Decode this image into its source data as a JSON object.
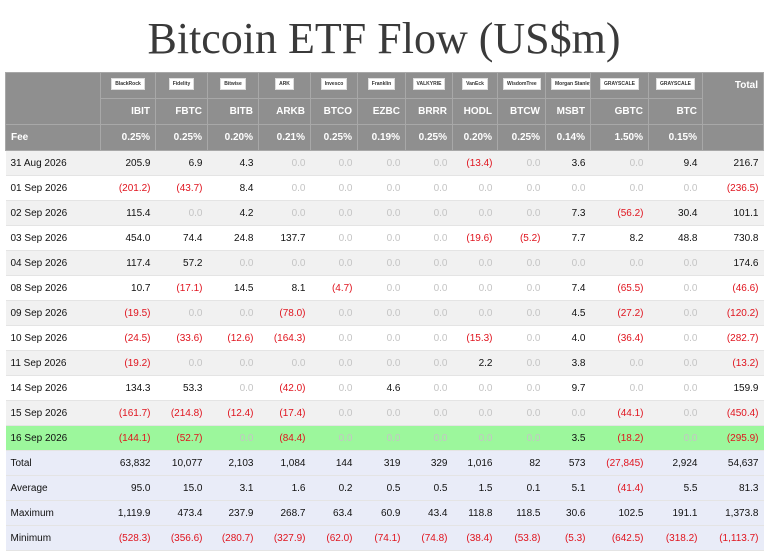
{
  "title": "Bitcoin ETF Flow (US$m)",
  "table": {
    "logos": [
      "BlackRock",
      "Fidelity",
      "Bitwise",
      "ARK",
      "Invesco",
      "Franklin",
      "VALKYRIE",
      "VanEck",
      "WisdomTree",
      "Morgan Stanley",
      "GRAYSCALE",
      "GRAYSCALE"
    ],
    "columns": [
      "IBIT",
      "FBTC",
      "BITB",
      "ARKB",
      "BTCO",
      "EZBC",
      "BRRR",
      "HODL",
      "BTCW",
      "MSBT",
      "GBTC",
      "BTC"
    ],
    "total_label": "Total",
    "fee_label": "Fee",
    "fees": [
      "0.25%",
      "0.25%",
      "0.20%",
      "0.21%",
      "0.25%",
      "0.19%",
      "0.25%",
      "0.20%",
      "0.25%",
      "0.14%",
      "1.50%",
      "0.15%"
    ],
    "rows": [
      {
        "date": "31 Aug 2026",
        "values": [
          "205.9",
          "6.9",
          "4.3",
          "0.0",
          "0.0",
          "0.0",
          "0.0",
          "(13.4)",
          "0.0",
          "3.6",
          "0.0",
          "9.4",
          "216.7"
        ]
      },
      {
        "date": "01 Sep 2026",
        "values": [
          "(201.2)",
          "(43.7)",
          "8.4",
          "0.0",
          "0.0",
          "0.0",
          "0.0",
          "0.0",
          "0.0",
          "0.0",
          "0.0",
          "0.0",
          "(236.5)"
        ]
      },
      {
        "date": "02 Sep 2026",
        "values": [
          "115.4",
          "0.0",
          "4.2",
          "0.0",
          "0.0",
          "0.0",
          "0.0",
          "0.0",
          "0.0",
          "7.3",
          "(56.2)",
          "30.4",
          "101.1"
        ]
      },
      {
        "date": "03 Sep 2026",
        "values": [
          "454.0",
          "74.4",
          "24.8",
          "137.7",
          "0.0",
          "0.0",
          "0.0",
          "(19.6)",
          "(5.2)",
          "7.7",
          "8.2",
          "48.8",
          "730.8"
        ]
      },
      {
        "date": "04 Sep 2026",
        "values": [
          "117.4",
          "57.2",
          "0.0",
          "0.0",
          "0.0",
          "0.0",
          "0.0",
          "0.0",
          "0.0",
          "0.0",
          "0.0",
          "0.0",
          "174.6"
        ]
      },
      {
        "date": "08 Sep 2026",
        "values": [
          "10.7",
          "(17.1)",
          "14.5",
          "8.1",
          "(4.7)",
          "0.0",
          "0.0",
          "0.0",
          "0.0",
          "7.4",
          "(65.5)",
          "0.0",
          "(46.6)"
        ]
      },
      {
        "date": "09 Sep 2026",
        "values": [
          "(19.5)",
          "0.0",
          "0.0",
          "(78.0)",
          "0.0",
          "0.0",
          "0.0",
          "0.0",
          "0.0",
          "4.5",
          "(27.2)",
          "0.0",
          "(120.2)"
        ]
      },
      {
        "date": "10 Sep 2026",
        "values": [
          "(24.5)",
          "(33.6)",
          "(12.6)",
          "(164.3)",
          "0.0",
          "0.0",
          "0.0",
          "(15.3)",
          "0.0",
          "4.0",
          "(36.4)",
          "0.0",
          "(282.7)"
        ]
      },
      {
        "date": "11 Sep 2026",
        "values": [
          "(19.2)",
          "0.0",
          "0.0",
          "0.0",
          "0.0",
          "0.0",
          "0.0",
          "2.2",
          "0.0",
          "3.8",
          "0.0",
          "0.0",
          "(13.2)"
        ]
      },
      {
        "date": "14 Sep 2026",
        "values": [
          "134.3",
          "53.3",
          "0.0",
          "(42.0)",
          "0.0",
          "4.6",
          "0.0",
          "0.0",
          "0.0",
          "9.7",
          "0.0",
          "0.0",
          "159.9"
        ]
      },
      {
        "date": "15 Sep 2026",
        "values": [
          "(161.7)",
          "(214.8)",
          "(12.4)",
          "(17.4)",
          "0.0",
          "0.0",
          "0.0",
          "0.0",
          "0.0",
          "0.0",
          "(44.1)",
          "0.0",
          "(450.4)"
        ]
      },
      {
        "date": "16 Sep 2026",
        "values": [
          "(144.1)",
          "(52.7)",
          "0.0",
          "(84.4)",
          "0.0",
          "0.0",
          "0.0",
          "0.0",
          "0.0",
          "3.5",
          "(18.2)",
          "0.0",
          "(295.9)"
        ]
      }
    ],
    "summary": [
      {
        "label": "Total",
        "values": [
          "63,832",
          "10,077",
          "2,103",
          "1,084",
          "144",
          "319",
          "329",
          "1,016",
          "82",
          "573",
          "(27,845)",
          "2,924",
          "54,637"
        ]
      },
      {
        "label": "Average",
        "values": [
          "95.0",
          "15.0",
          "3.1",
          "1.6",
          "0.2",
          "0.5",
          "0.5",
          "1.5",
          "0.1",
          "5.1",
          "(41.4)",
          "5.5",
          "81.3"
        ]
      },
      {
        "label": "Maximum",
        "values": [
          "1,119.9",
          "473.4",
          "237.9",
          "268.7",
          "63.4",
          "60.9",
          "43.4",
          "118.8",
          "118.5",
          "30.6",
          "102.5",
          "191.1",
          "1,373.8"
        ]
      },
      {
        "label": "Minimum",
        "values": [
          "(528.3)",
          "(356.6)",
          "(280.7)",
          "(327.9)",
          "(62.0)",
          "(74.1)",
          "(74.8)",
          "(38.4)",
          "(53.8)",
          "(5.3)",
          "(642.5)",
          "(318.2)",
          "(1,113.7)"
        ]
      }
    ]
  }
}
